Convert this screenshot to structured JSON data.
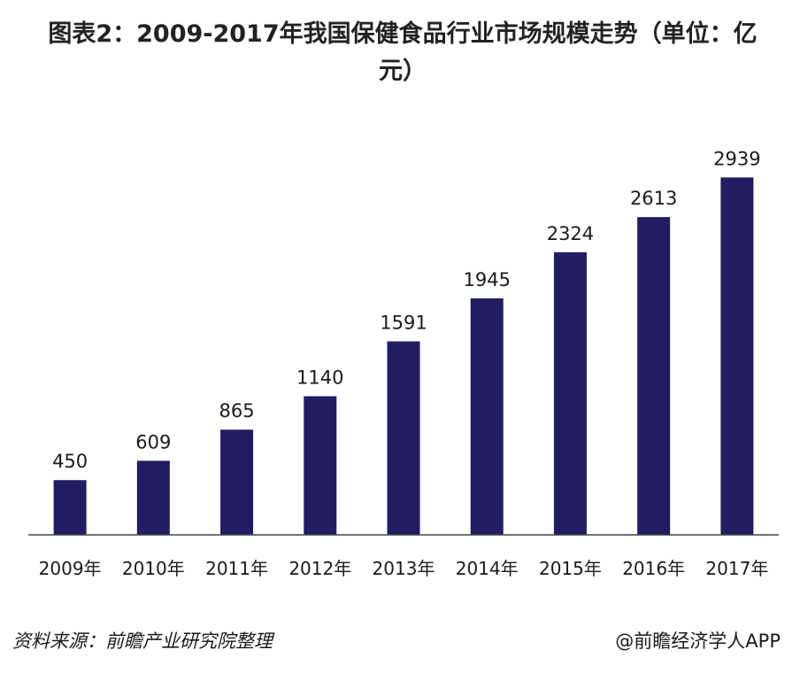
{
  "chart_data": {
    "type": "bar",
    "title": "图表2：2009-2017年我国保健食品行业市场规模走势（单位：亿元）",
    "categories": [
      "2009年",
      "2010年",
      "2011年",
      "2012年",
      "2013年",
      "2014年",
      "2015年",
      "2016年",
      "2017年"
    ],
    "values": [
      450,
      609,
      865,
      1140,
      1591,
      1945,
      2324,
      2613,
      2939
    ],
    "ylim": [
      0,
      3000
    ],
    "bar_color": "#221d62",
    "grid": false,
    "legend": "none"
  },
  "footer": {
    "source": "资料来源：前瞻产业研究院整理",
    "credit": "@前瞻经济学人APP"
  }
}
